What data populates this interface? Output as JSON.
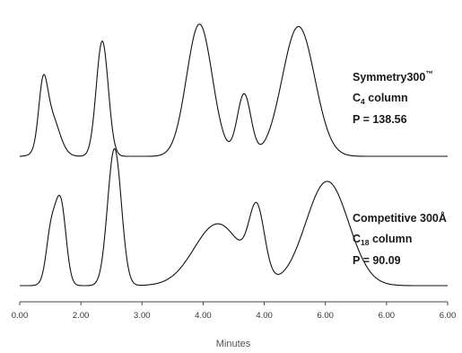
{
  "chart_data": {
    "type": "line",
    "x_axis": {
      "label": "Minutes",
      "ticks": [
        "0.00",
        "2.00",
        "3.00",
        "4.00",
        "4.00",
        "6.00",
        "6.00",
        "6.00"
      ],
      "range": [
        0,
        7
      ]
    },
    "line_color": "#111111",
    "series": [
      {
        "name_main": "Symmetry300",
        "name_mark": "™",
        "column_prefix": "C",
        "column_sub": "4",
        "column_suffix": " column",
        "p_text": "P = 138.56",
        "peaks": [
          {
            "t": 0.38,
            "h": 0.42,
            "w": 0.01
          },
          {
            "t": 0.5,
            "h": 0.35,
            "w": 0.02
          },
          {
            "t": 1.35,
            "h": 0.95,
            "w": 0.014
          },
          {
            "t": 2.94,
            "h": 1.09,
            "w": 0.03
          },
          {
            "t": 3.67,
            "h": 0.51,
            "w": 0.016
          },
          {
            "t": 4.56,
            "h": 1.07,
            "w": 0.038
          }
        ]
      },
      {
        "name_main": "Competitive 300Å",
        "name_mark": "",
        "column_prefix": "C",
        "column_sub": "18",
        "column_suffix": " column",
        "p_text": "P = 90.09",
        "peaks": [
          {
            "t": 0.5,
            "h": 0.22,
            "w": 0.01
          },
          {
            "t": 0.58,
            "h": 0.32,
            "w": 0.016
          },
          {
            "t": 0.68,
            "h": 0.49,
            "w": 0.012
          },
          {
            "t": 1.55,
            "h": 1.13,
            "w": 0.016
          },
          {
            "t": 3.24,
            "h": 0.51,
            "w": 0.055
          },
          {
            "t": 3.88,
            "h": 0.55,
            "w": 0.018
          },
          {
            "t": 5.03,
            "h": 0.86,
            "w": 0.05
          }
        ]
      }
    ]
  }
}
